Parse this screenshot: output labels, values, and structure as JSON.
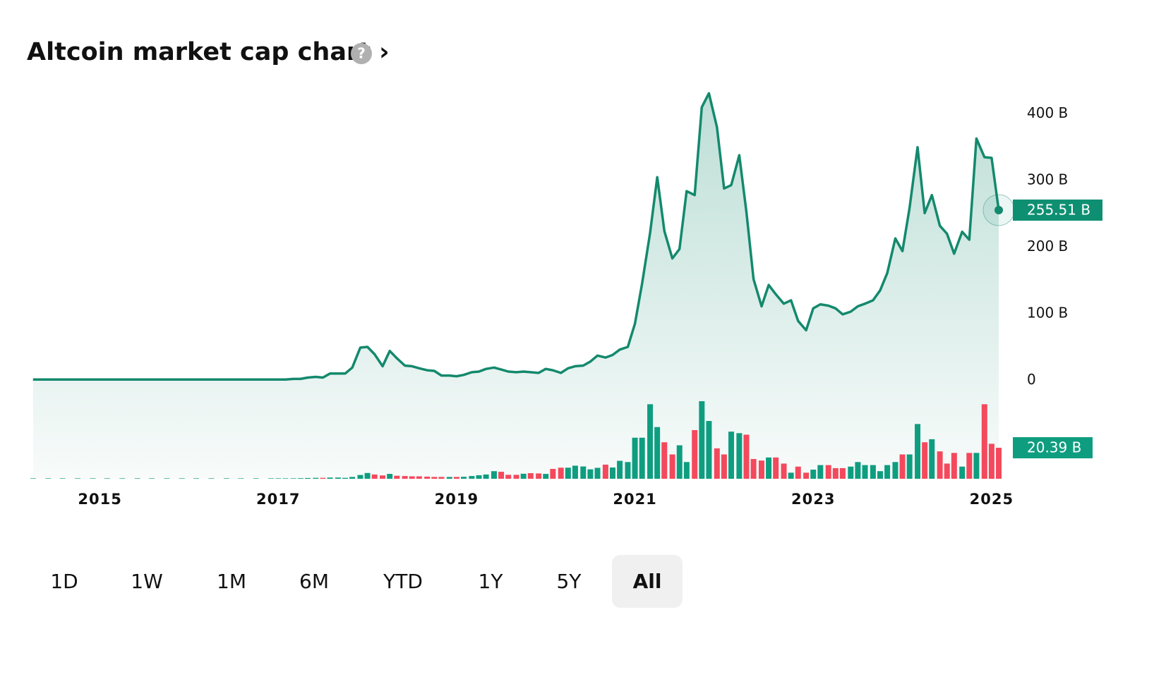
{
  "chart_data": {
    "type": "line",
    "title": "Altcoin market cap chart ›",
    "help_icon": "?",
    "x": [
      2014.25,
      2014.42,
      2014.58,
      2014.75,
      2014.92,
      2015.08,
      2015.25,
      2015.42,
      2015.58,
      2015.75,
      2015.92,
      2016.08,
      2016.25,
      2016.42,
      2016.58,
      2016.75,
      2016.92,
      2017.0,
      2017.08,
      2017.17,
      2017.25,
      2017.33,
      2017.42,
      2017.5,
      2017.58,
      2017.67,
      2017.75,
      2017.83,
      2017.92,
      2018.0,
      2018.08,
      2018.17,
      2018.25,
      2018.33,
      2018.42,
      2018.5,
      2018.58,
      2018.67,
      2018.75,
      2018.83,
      2018.92,
      2019.0,
      2019.08,
      2019.17,
      2019.25,
      2019.33,
      2019.42,
      2019.5,
      2019.58,
      2019.67,
      2019.75,
      2019.83,
      2019.92,
      2020.0,
      2020.08,
      2020.17,
      2020.25,
      2020.33,
      2020.42,
      2020.5,
      2020.58,
      2020.67,
      2020.75,
      2020.83,
      2020.92,
      2021.0,
      2021.08,
      2021.17,
      2021.25,
      2021.33,
      2021.42,
      2021.5,
      2021.58,
      2021.67,
      2021.75,
      2021.83,
      2021.92,
      2022.0,
      2022.08,
      2022.17,
      2022.25,
      2022.33,
      2022.42,
      2022.5,
      2022.58,
      2022.67,
      2022.75,
      2022.83,
      2022.92,
      2023.0,
      2023.08,
      2023.17,
      2023.25,
      2023.33,
      2023.42,
      2023.5,
      2023.58,
      2023.67,
      2023.75,
      2023.83,
      2023.92,
      2024.0,
      2024.08,
      2024.17,
      2024.25,
      2024.33,
      2024.42,
      2024.5,
      2024.58,
      2024.67,
      2024.75,
      2024.83,
      2024.92,
      2025.0,
      2025.08
    ],
    "series": [
      {
        "color": "#13896d",
        "values": [
          1,
          1,
          1,
          1,
          1,
          1,
          1,
          1,
          1,
          1,
          1,
          1,
          1,
          1,
          1,
          1,
          1,
          1,
          1,
          2,
          2,
          4,
          5,
          4,
          10,
          10,
          10,
          19,
          49,
          50,
          39,
          21,
          44,
          33,
          22,
          21,
          18,
          15,
          14,
          7,
          7,
          6,
          8,
          12,
          13,
          17,
          19,
          16,
          13,
          12,
          13,
          12,
          11,
          17,
          15,
          11,
          18,
          21,
          22,
          28,
          37,
          34,
          38,
          46,
          50,
          85,
          145,
          221,
          305,
          224,
          183,
          197,
          284,
          278,
          410,
          431,
          380,
          288,
          293,
          338,
          253,
          152,
          111,
          143,
          129,
          115,
          120,
          89,
          75,
          108,
          114,
          112,
          108,
          99,
          103,
          111,
          115,
          120,
          135,
          161,
          213,
          194,
          259,
          350,
          251,
          278,
          232,
          220,
          190,
          223,
          211,
          363,
          335,
          334,
          255.51
        ],
        "last_label": "255.51 B"
      }
    ],
    "volume": {
      "up_color": "#0f9d80",
      "down_color": "#f4495c",
      "last_label": "20.39 B",
      "values": [
        0.3,
        0.3,
        0.3,
        0.3,
        0.3,
        0.3,
        0.3,
        0.3,
        0.3,
        0.3,
        0.3,
        0.3,
        0.3,
        0.3,
        0.3,
        0.3,
        0.3,
        0.3,
        0.3,
        0.3,
        0.4,
        0.5,
        0.6,
        0.6,
        0.8,
        0.8,
        0.6,
        1.2,
        2.5,
        3.8,
        2.8,
        2.2,
        3.2,
        2,
        1.8,
        1.6,
        1.6,
        1.4,
        1.2,
        1.2,
        1.2,
        1.2,
        1.3,
        1.8,
        2.3,
        2.8,
        5,
        4.6,
        2.6,
        2.6,
        3.3,
        3.7,
        3.5,
        3.2,
        6.5,
        7.3,
        7.3,
        8.6,
        8.1,
        6.2,
        7.2,
        9.3,
        7.4,
        11.8,
        11,
        27,
        27,
        49,
        34,
        24,
        16,
        22,
        11,
        32,
        51,
        38,
        20,
        16,
        31,
        30,
        29,
        13,
        12,
        14,
        14,
        10,
        4,
        8,
        4,
        6,
        9,
        9,
        7,
        7,
        8,
        11,
        9,
        9,
        5,
        9,
        11,
        16,
        16,
        36,
        24,
        26,
        18,
        10,
        17,
        8,
        17,
        17,
        49,
        23,
        20.39
      ]
    },
    "xlim": [
      2014.18,
      2025.08
    ],
    "xticks": [
      2015,
      2017,
      2019,
      2021,
      2023,
      2025
    ],
    "ylim": [
      -148,
      444
    ],
    "yticks": [
      0,
      {
        "value": 100,
        "label": "100 B"
      },
      {
        "value": 200,
        "label": "200 B"
      },
      {
        "value": 300,
        "label": "300 B"
      },
      {
        "value": 400,
        "label": "400 B"
      }
    ],
    "range_buttons": [
      {
        "label": "1D"
      },
      {
        "label": "1W"
      },
      {
        "label": "1M"
      },
      {
        "label": "6M"
      },
      {
        "label": "YTD"
      },
      {
        "label": "1Y"
      },
      {
        "label": "5Y"
      },
      {
        "label": "All",
        "selected": true
      }
    ]
  }
}
